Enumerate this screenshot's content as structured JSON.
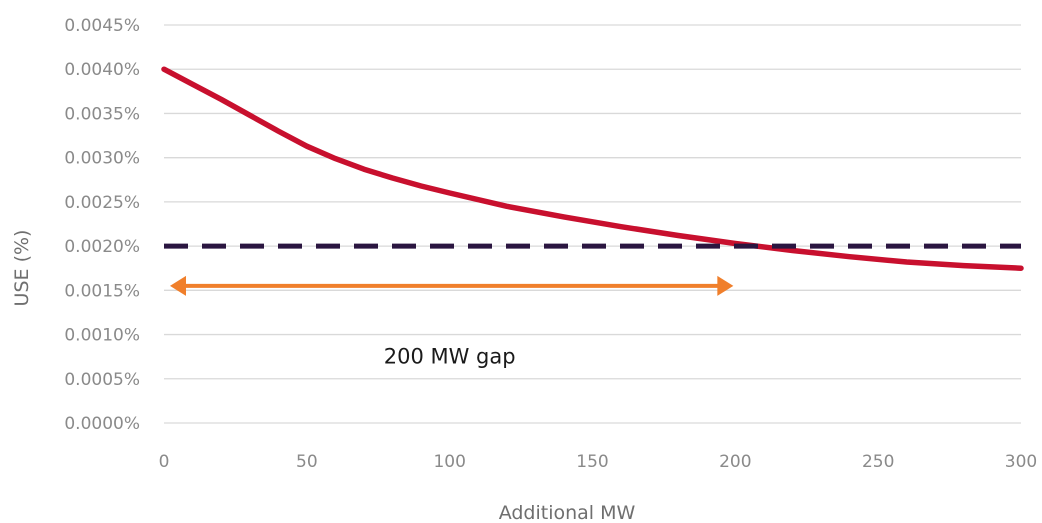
{
  "chart_data": {
    "type": "line",
    "title": "",
    "xlabel": "Additional MW",
    "ylabel": "USE (%)",
    "xlim": [
      0,
      300
    ],
    "ylim": [
      0,
      0.0045
    ],
    "x_ticks": [
      0,
      50,
      100,
      150,
      200,
      250,
      300
    ],
    "y_ticks": [
      0,
      0.0005,
      0.001,
      0.0015,
      0.002,
      0.0025,
      0.003,
      0.0035,
      0.004,
      0.0045
    ],
    "y_tick_labels": [
      "0.0000%",
      "0.0005%",
      "0.0010%",
      "0.0015%",
      "0.0020%",
      "0.0025%",
      "0.0030%",
      "0.0035%",
      "0.0040%",
      "0.0045%"
    ],
    "grid": "horizontal",
    "series": [
      {
        "style": "solid",
        "color": "#c8102e",
        "x": [
          0,
          10,
          20,
          30,
          40,
          50,
          60,
          70,
          80,
          90,
          100,
          120,
          140,
          160,
          180,
          200,
          220,
          240,
          260,
          280,
          300
        ],
        "y": [
          0.004,
          0.00383,
          0.00366,
          0.00348,
          0.0033,
          0.00313,
          0.00299,
          0.00287,
          0.00277,
          0.00268,
          0.0026,
          0.00245,
          0.00233,
          0.00222,
          0.00212,
          0.00203,
          0.00195,
          0.00188,
          0.00182,
          0.00178,
          0.00175
        ]
      },
      {
        "style": "dashed",
        "color": "#2a1540",
        "x": [
          0,
          300
        ],
        "y": [
          0.002,
          0.002
        ]
      }
    ],
    "annotations": [
      {
        "type": "double-arrow",
        "color": "#f07f2b",
        "x_start": 0,
        "x_end": 200,
        "y": 0.00155
      },
      {
        "type": "text",
        "text": "200 MW gap",
        "x": 100,
        "y": 0.00067
      }
    ]
  }
}
